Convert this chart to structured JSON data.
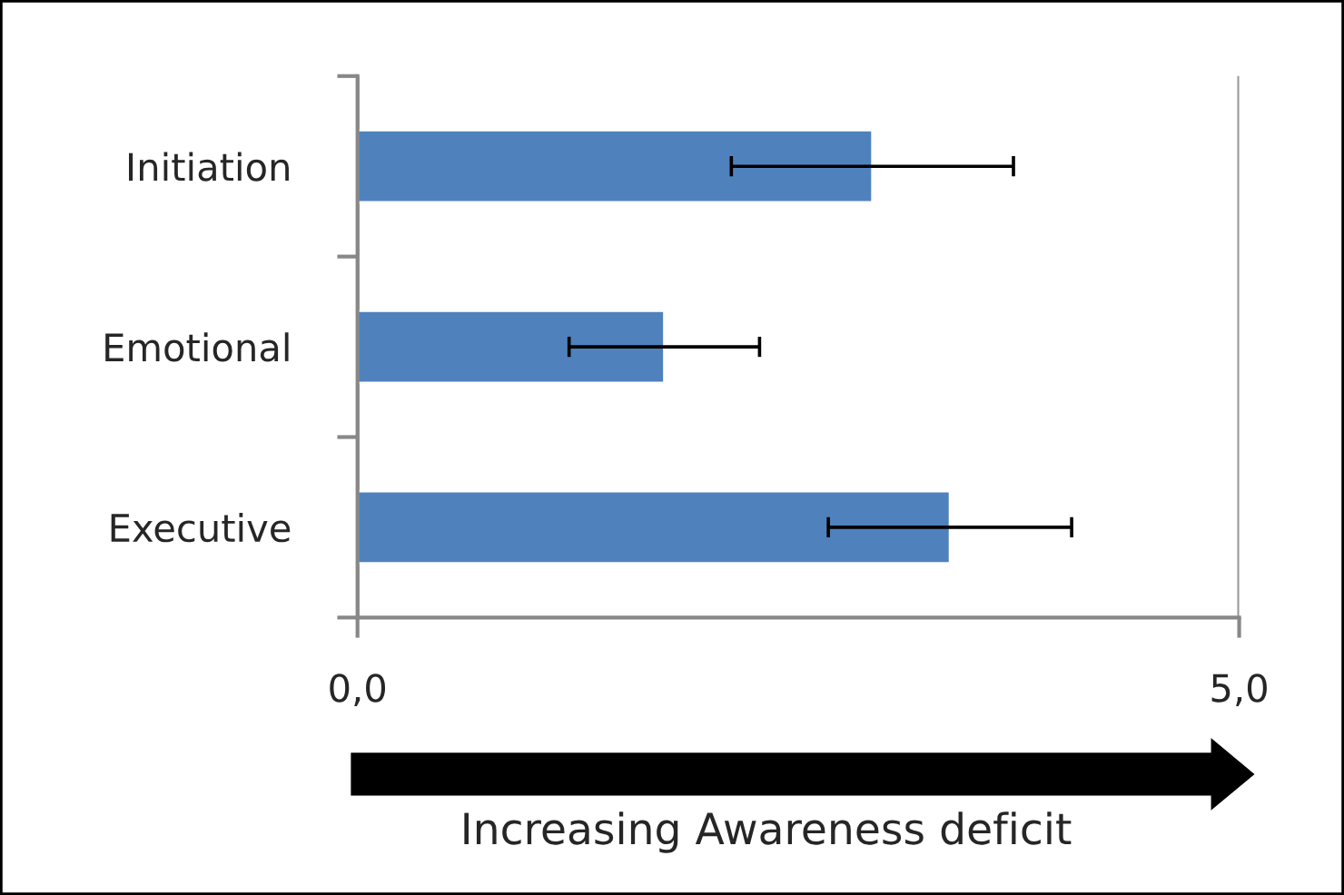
{
  "chart_data": {
    "type": "bar",
    "orientation": "horizontal",
    "xlabel": "Increasing Awareness deficit",
    "categories": [
      "Initiation",
      "Emotional",
      "Executive"
    ],
    "values": [
      2.92,
      1.74,
      3.36
    ],
    "errors": [
      0.8,
      0.54,
      0.69
    ],
    "color": "#4f81bd",
    "xlim": [
      0,
      5
    ],
    "xticks": [
      {
        "value": 0,
        "label": "0,0"
      },
      {
        "value": 5,
        "label": "5,0"
      }
    ],
    "grid": "x"
  }
}
